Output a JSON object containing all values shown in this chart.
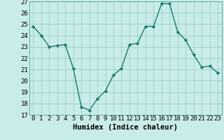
{
  "x": [
    0,
    1,
    2,
    3,
    4,
    5,
    6,
    7,
    8,
    9,
    10,
    11,
    12,
    13,
    14,
    15,
    16,
    17,
    18,
    19,
    20,
    21,
    22,
    23
  ],
  "y": [
    24.8,
    24.0,
    23.0,
    23.1,
    23.2,
    21.1,
    17.7,
    17.4,
    18.4,
    19.1,
    20.5,
    21.1,
    23.2,
    23.3,
    24.8,
    24.8,
    26.8,
    26.8,
    24.3,
    23.6,
    22.3,
    21.2,
    21.3,
    20.7
  ],
  "line_color": "#1a7a6e",
  "marker": "D",
  "marker_size": 2.2,
  "bg_color": "#c8ece9",
  "grid_color": "#9ecfca",
  "xlabel": "Humidex (Indice chaleur)",
  "ylabel_ticks": [
    17,
    18,
    19,
    20,
    21,
    22,
    23,
    24,
    25,
    26,
    27
  ],
  "xlim": [
    -0.5,
    23.5
  ],
  "ylim": [
    17,
    27
  ],
  "xtick_labels": [
    "0",
    "1",
    "2",
    "3",
    "4",
    "5",
    "6",
    "7",
    "8",
    "9",
    "10",
    "11",
    "12",
    "13",
    "14",
    "15",
    "16",
    "17",
    "18",
    "19",
    "20",
    "21",
    "22",
    "23"
  ],
  "tick_fontsize": 6.5,
  "xlabel_fontsize": 7.5,
  "linewidth": 1.0
}
